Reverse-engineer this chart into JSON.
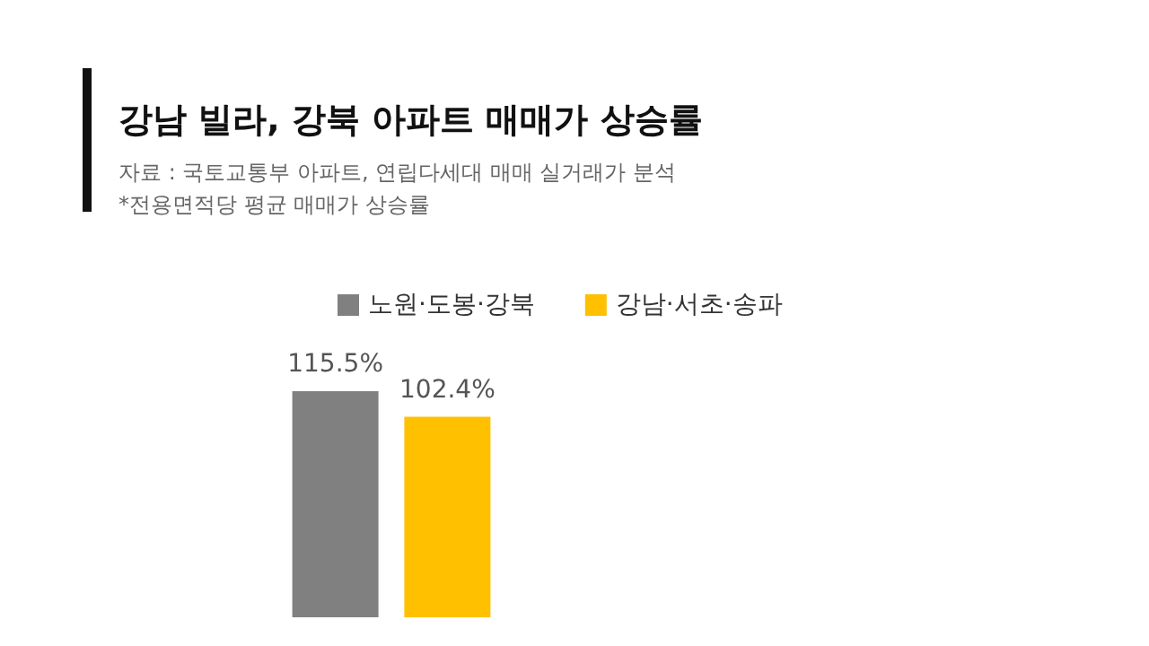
{
  "chart_data": {
    "type": "bar",
    "title": "강남 빌라, 강북 아파트 매매가 상승률",
    "annotations": [
      "자료 : 국토교통부 아파트, 연립다세대 매매 실거래가 분석",
      "*전용면적당 평균 매매가 상승률"
    ],
    "categories": [
      null
    ],
    "series": [
      {
        "name": "노원·도봉·강북",
        "color": "#808080",
        "values": [
          115.5
        ],
        "value_labels": [
          "115.5%"
        ]
      },
      {
        "name": "강남·서초·송파",
        "color": "#ffc000",
        "values": [
          102.4
        ],
        "value_labels": [
          "102.4%"
        ]
      }
    ],
    "legend": "top"
  }
}
